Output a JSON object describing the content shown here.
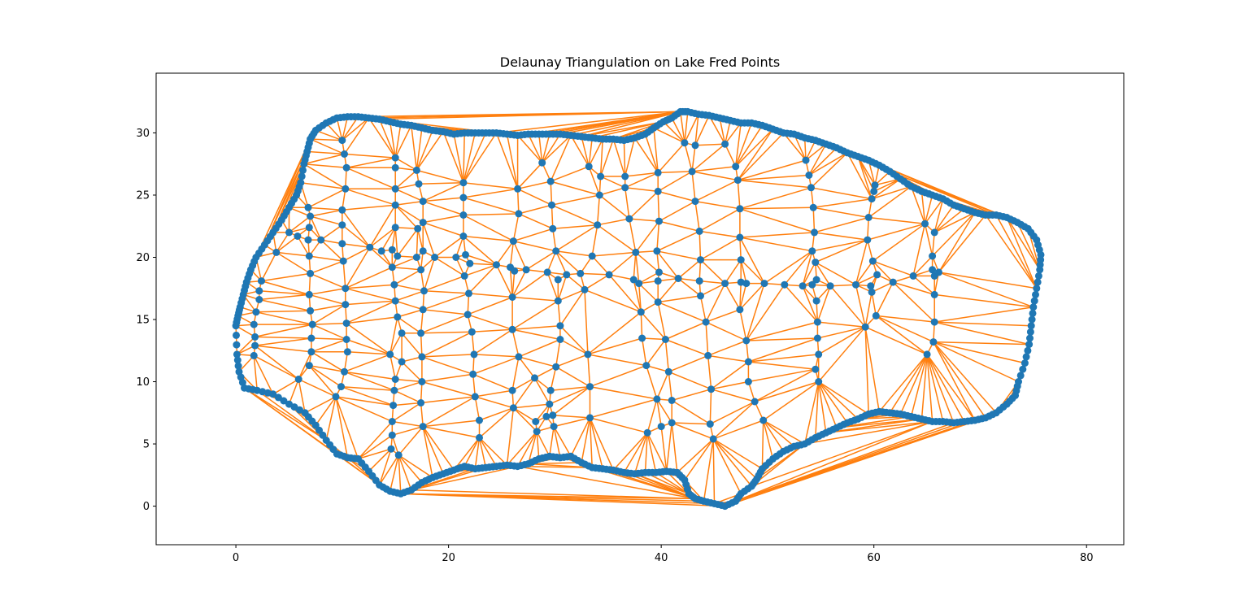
{
  "chart_data": {
    "type": "scatter",
    "title": "Delaunay Triangulation on Lake Fred Points",
    "xlabel": "",
    "ylabel": "",
    "xlim": [
      -7.5,
      83.5
    ],
    "ylim": [
      -3.1,
      34.8
    ],
    "xticks": [
      0,
      20,
      40,
      60,
      80
    ],
    "yticks": [
      0,
      5,
      10,
      15,
      20,
      25,
      30
    ],
    "grid": false,
    "legend": "none",
    "colors": {
      "points": "#1f77b4",
      "edges": "#ff7f0e"
    },
    "boundary": [
      [
        0.0,
        14.5
      ],
      [
        0.1,
        12.2
      ],
      [
        0.3,
        10.8
      ],
      [
        0.8,
        9.5
      ],
      [
        2.0,
        9.3
      ],
      [
        3.5,
        9.0
      ],
      [
        5.0,
        8.2
      ],
      [
        6.5,
        7.5
      ],
      [
        7.5,
        6.5
      ],
      [
        8.5,
        5.3
      ],
      [
        9.5,
        4.2
      ],
      [
        10.5,
        3.9
      ],
      [
        11.5,
        3.8
      ],
      [
        12.5,
        2.8
      ],
      [
        13.5,
        1.7
      ],
      [
        14.5,
        1.2
      ],
      [
        15.5,
        1.0
      ],
      [
        16.5,
        1.3
      ],
      [
        17.5,
        1.9
      ],
      [
        18.5,
        2.3
      ],
      [
        19.5,
        2.6
      ],
      [
        20.5,
        2.9
      ],
      [
        21.5,
        3.2
      ],
      [
        22.5,
        3.0
      ],
      [
        23.5,
        3.1
      ],
      [
        24.5,
        3.2
      ],
      [
        25.5,
        3.3
      ],
      [
        26.5,
        3.2
      ],
      [
        27.5,
        3.4
      ],
      [
        28.5,
        3.8
      ],
      [
        29.5,
        4.0
      ],
      [
        30.5,
        3.9
      ],
      [
        31.5,
        4.0
      ],
      [
        32.5,
        3.5
      ],
      [
        33.5,
        3.1
      ],
      [
        34.5,
        3.0
      ],
      [
        35.5,
        2.9
      ],
      [
        36.5,
        2.7
      ],
      [
        37.5,
        2.6
      ],
      [
        38.5,
        2.7
      ],
      [
        39.5,
        2.7
      ],
      [
        40.5,
        2.8
      ],
      [
        41.5,
        2.7
      ],
      [
        42.2,
        2.1
      ],
      [
        42.6,
        1.0
      ],
      [
        43.2,
        0.6
      ],
      [
        44.0,
        0.4
      ],
      [
        45.0,
        0.2
      ],
      [
        46.0,
        0.0
      ],
      [
        47.0,
        0.4
      ],
      [
        47.5,
        1.0
      ],
      [
        48.5,
        1.6
      ],
      [
        49.0,
        2.2
      ],
      [
        49.5,
        3.0
      ],
      [
        50.5,
        3.8
      ],
      [
        51.5,
        4.4
      ],
      [
        52.5,
        4.8
      ],
      [
        53.5,
        5.0
      ],
      [
        54.5,
        5.5
      ],
      [
        55.5,
        5.9
      ],
      [
        56.5,
        6.3
      ],
      [
        57.5,
        6.7
      ],
      [
        58.5,
        7.0
      ],
      [
        59.5,
        7.4
      ],
      [
        60.5,
        7.6
      ],
      [
        61.5,
        7.5
      ],
      [
        62.5,
        7.4
      ],
      [
        63.5,
        7.2
      ],
      [
        64.5,
        7.0
      ],
      [
        65.5,
        6.8
      ],
      [
        66.5,
        6.8
      ],
      [
        67.5,
        6.7
      ],
      [
        68.5,
        6.8
      ],
      [
        69.5,
        6.9
      ],
      [
        70.5,
        7.1
      ],
      [
        71.5,
        7.5
      ],
      [
        72.5,
        8.2
      ],
      [
        73.3,
        8.9
      ],
      [
        73.6,
        10.0
      ],
      [
        74.2,
        11.5
      ],
      [
        74.6,
        13.0
      ],
      [
        74.8,
        14.5
      ],
      [
        75.0,
        16.0
      ],
      [
        75.3,
        17.5
      ],
      [
        75.6,
        19.0
      ],
      [
        75.7,
        20.2
      ],
      [
        75.3,
        21.4
      ],
      [
        74.5,
        22.3
      ],
      [
        73.5,
        22.8
      ],
      [
        72.5,
        23.2
      ],
      [
        71.5,
        23.4
      ],
      [
        70.5,
        23.4
      ],
      [
        69.5,
        23.6
      ],
      [
        68.5,
        23.9
      ],
      [
        67.5,
        24.2
      ],
      [
        66.5,
        24.7
      ],
      [
        65.5,
        25.0
      ],
      [
        64.5,
        25.3
      ],
      [
        63.5,
        25.7
      ],
      [
        62.5,
        26.3
      ],
      [
        61.5,
        26.9
      ],
      [
        60.5,
        27.4
      ],
      [
        59.5,
        27.8
      ],
      [
        58.5,
        28.1
      ],
      [
        57.5,
        28.4
      ],
      [
        56.5,
        28.8
      ],
      [
        55.5,
        29.1
      ],
      [
        54.5,
        29.4
      ],
      [
        53.5,
        29.6
      ],
      [
        52.5,
        29.9
      ],
      [
        51.5,
        30.0
      ],
      [
        50.5,
        30.3
      ],
      [
        49.5,
        30.6
      ],
      [
        48.5,
        30.8
      ],
      [
        47.5,
        30.8
      ],
      [
        46.5,
        31.0
      ],
      [
        45.5,
        31.2
      ],
      [
        44.5,
        31.4
      ],
      [
        43.5,
        31.5
      ],
      [
        42.5,
        31.7
      ],
      [
        41.8,
        31.7
      ],
      [
        41.0,
        31.2
      ],
      [
        40.2,
        30.9
      ],
      [
        39.3,
        30.4
      ],
      [
        38.5,
        29.9
      ],
      [
        37.5,
        29.6
      ],
      [
        36.5,
        29.4
      ],
      [
        35.5,
        29.5
      ],
      [
        34.5,
        29.5
      ],
      [
        33.5,
        29.6
      ],
      [
        32.5,
        29.7
      ],
      [
        31.5,
        29.8
      ],
      [
        30.5,
        29.9
      ],
      [
        29.5,
        29.9
      ],
      [
        28.5,
        29.9
      ],
      [
        27.5,
        29.9
      ],
      [
        26.5,
        29.8
      ],
      [
        25.5,
        29.9
      ],
      [
        24.5,
        30.0
      ],
      [
        23.5,
        30.0
      ],
      [
        22.5,
        30.0
      ],
      [
        21.5,
        30.0
      ],
      [
        20.5,
        29.9
      ],
      [
        19.5,
        30.1
      ],
      [
        18.5,
        30.2
      ],
      [
        17.5,
        30.4
      ],
      [
        16.5,
        30.6
      ],
      [
        15.5,
        30.7
      ],
      [
        14.5,
        30.9
      ],
      [
        13.5,
        31.1
      ],
      [
        12.5,
        31.2
      ],
      [
        11.5,
        31.3
      ],
      [
        10.5,
        31.3
      ],
      [
        9.5,
        31.2
      ],
      [
        8.5,
        30.8
      ],
      [
        7.5,
        30.2
      ],
      [
        7.0,
        29.5
      ],
      [
        6.7,
        28.5
      ],
      [
        6.4,
        27.5
      ],
      [
        6.1,
        26.0
      ],
      [
        5.7,
        25.0
      ],
      [
        5.0,
        24.0
      ],
      [
        4.3,
        23.0
      ],
      [
        3.5,
        22.0
      ],
      [
        2.7,
        21.0
      ],
      [
        1.9,
        20.0
      ],
      [
        1.4,
        19.0
      ],
      [
        1.0,
        18.0
      ],
      [
        0.7,
        17.0
      ],
      [
        0.4,
        16.0
      ],
      [
        0.2,
        15.3
      ]
    ],
    "interior": [
      [
        10.0,
        29.4
      ],
      [
        10.2,
        28.3
      ],
      [
        10.4,
        27.2
      ],
      [
        10.3,
        25.5
      ],
      [
        10.0,
        23.8
      ],
      [
        10.0,
        22.6
      ],
      [
        10.0,
        21.1
      ],
      [
        10.1,
        19.7
      ],
      [
        10.3,
        17.5
      ],
      [
        10.3,
        16.2
      ],
      [
        10.4,
        14.7
      ],
      [
        10.4,
        13.4
      ],
      [
        10.5,
        12.4
      ],
      [
        10.2,
        10.8
      ],
      [
        9.9,
        9.6
      ],
      [
        9.4,
        8.8
      ],
      [
        6.8,
        24.0
      ],
      [
        7.0,
        23.3
      ],
      [
        6.9,
        22.4
      ],
      [
        6.8,
        21.4
      ],
      [
        6.9,
        20.1
      ],
      [
        7.0,
        18.7
      ],
      [
        6.9,
        17.0
      ],
      [
        7.0,
        15.7
      ],
      [
        7.2,
        14.6
      ],
      [
        7.1,
        13.5
      ],
      [
        7.1,
        12.4
      ],
      [
        6.9,
        11.3
      ],
      [
        5.9,
        10.2
      ],
      [
        5.0,
        22.0
      ],
      [
        5.8,
        21.7
      ],
      [
        8.0,
        21.4
      ],
      [
        3.8,
        20.4
      ],
      [
        2.4,
        18.1
      ],
      [
        2.2,
        17.3
      ],
      [
        2.2,
        16.6
      ],
      [
        1.9,
        15.6
      ],
      [
        1.7,
        14.6
      ],
      [
        1.8,
        13.6
      ],
      [
        1.8,
        12.9
      ],
      [
        1.7,
        12.1
      ],
      [
        12.6,
        20.8
      ],
      [
        13.7,
        20.5
      ],
      [
        14.7,
        20.6
      ],
      [
        15.2,
        20.1
      ],
      [
        14.7,
        19.2
      ],
      [
        14.9,
        17.8
      ],
      [
        15.0,
        16.5
      ],
      [
        15.2,
        15.2
      ],
      [
        15.6,
        13.9
      ],
      [
        14.5,
        12.2
      ],
      [
        15.6,
        11.6
      ],
      [
        15.0,
        10.2
      ],
      [
        14.9,
        9.3
      ],
      [
        14.8,
        8.1
      ],
      [
        14.7,
        6.8
      ],
      [
        14.7,
        5.7
      ],
      [
        14.6,
        4.6
      ],
      [
        15.3,
        4.1
      ],
      [
        15.0,
        28.0
      ],
      [
        15.0,
        27.2
      ],
      [
        15.0,
        25.5
      ],
      [
        15.0,
        24.2
      ],
      [
        15.0,
        22.4
      ],
      [
        17.0,
        27.0
      ],
      [
        17.2,
        25.9
      ],
      [
        17.6,
        24.5
      ],
      [
        17.1,
        22.3
      ],
      [
        17.6,
        22.8
      ],
      [
        17.0,
        20.0
      ],
      [
        17.6,
        20.5
      ],
      [
        17.4,
        19.0
      ],
      [
        17.7,
        17.3
      ],
      [
        17.6,
        15.8
      ],
      [
        17.4,
        13.9
      ],
      [
        17.5,
        12.0
      ],
      [
        17.5,
        10.0
      ],
      [
        17.4,
        8.3
      ],
      [
        17.6,
        6.4
      ],
      [
        18.7,
        20.0
      ],
      [
        20.7,
        20.0
      ],
      [
        21.6,
        20.2
      ],
      [
        22.0,
        19.5
      ],
      [
        21.5,
        18.5
      ],
      [
        21.9,
        17.1
      ],
      [
        21.8,
        15.4
      ],
      [
        22.2,
        14.0
      ],
      [
        22.4,
        12.2
      ],
      [
        22.3,
        10.6
      ],
      [
        22.5,
        8.8
      ],
      [
        22.9,
        6.9
      ],
      [
        22.9,
        5.5
      ],
      [
        21.4,
        26.0
      ],
      [
        21.4,
        24.8
      ],
      [
        21.4,
        23.4
      ],
      [
        21.4,
        21.7
      ],
      [
        24.5,
        19.4
      ],
      [
        25.8,
        19.2
      ],
      [
        26.2,
        18.9
      ],
      [
        27.3,
        19.0
      ],
      [
        26.1,
        21.3
      ],
      [
        26.6,
        23.5
      ],
      [
        26.5,
        25.5
      ],
      [
        26.0,
        16.8
      ],
      [
        26.0,
        14.2
      ],
      [
        26.6,
        12.0
      ],
      [
        26.0,
        9.3
      ],
      [
        26.1,
        7.9
      ],
      [
        28.8,
        27.6
      ],
      [
        29.6,
        26.1
      ],
      [
        29.7,
        24.2
      ],
      [
        29.8,
        22.3
      ],
      [
        30.1,
        20.5
      ],
      [
        29.3,
        18.8
      ],
      [
        30.3,
        18.2
      ],
      [
        30.3,
        16.5
      ],
      [
        30.5,
        14.5
      ],
      [
        30.5,
        13.4
      ],
      [
        30.1,
        11.2
      ],
      [
        28.1,
        10.3
      ],
      [
        29.6,
        9.3
      ],
      [
        29.5,
        8.2
      ],
      [
        29.2,
        7.2
      ],
      [
        29.8,
        7.3
      ],
      [
        29.9,
        6.4
      ],
      [
        28.2,
        6.8
      ],
      [
        28.3,
        6.0
      ],
      [
        31.1,
        18.6
      ],
      [
        32.4,
        18.7
      ],
      [
        32.8,
        17.4
      ],
      [
        33.1,
        12.2
      ],
      [
        33.3,
        9.6
      ],
      [
        33.3,
        7.1
      ],
      [
        33.2,
        27.3
      ],
      [
        34.3,
        26.5
      ],
      [
        34.2,
        25.0
      ],
      [
        34.0,
        22.6
      ],
      [
        33.5,
        20.1
      ],
      [
        35.1,
        18.6
      ],
      [
        36.6,
        26.5
      ],
      [
        36.6,
        25.6
      ],
      [
        37.0,
        23.1
      ],
      [
        37.6,
        20.4
      ],
      [
        37.4,
        18.2
      ],
      [
        37.9,
        17.9
      ],
      [
        38.1,
        15.6
      ],
      [
        38.2,
        13.5
      ],
      [
        38.6,
        11.3
      ],
      [
        38.7,
        5.9
      ],
      [
        39.7,
        26.8
      ],
      [
        39.7,
        25.3
      ],
      [
        39.8,
        22.9
      ],
      [
        39.6,
        20.5
      ],
      [
        39.8,
        18.8
      ],
      [
        39.7,
        18.1
      ],
      [
        39.7,
        16.4
      ],
      [
        39.6,
        8.6
      ],
      [
        40.0,
        6.4
      ],
      [
        40.4,
        13.4
      ],
      [
        40.7,
        10.8
      ],
      [
        41.0,
        8.5
      ],
      [
        41.0,
        6.7
      ],
      [
        41.6,
        18.3
      ],
      [
        42.2,
        29.2
      ],
      [
        43.2,
        29.0
      ],
      [
        42.9,
        26.9
      ],
      [
        43.2,
        24.5
      ],
      [
        43.6,
        22.1
      ],
      [
        43.7,
        19.8
      ],
      [
        43.6,
        18.1
      ],
      [
        43.7,
        16.9
      ],
      [
        44.2,
        14.8
      ],
      [
        44.4,
        12.1
      ],
      [
        44.7,
        9.4
      ],
      [
        44.6,
        6.6
      ],
      [
        44.9,
        5.4
      ],
      [
        46.0,
        29.1
      ],
      [
        46.0,
        17.9
      ],
      [
        47.0,
        27.3
      ],
      [
        47.2,
        26.2
      ],
      [
        47.4,
        23.9
      ],
      [
        47.4,
        21.6
      ],
      [
        47.5,
        19.8
      ],
      [
        47.5,
        18.0
      ],
      [
        48.0,
        17.9
      ],
      [
        47.4,
        15.8
      ],
      [
        48.0,
        13.3
      ],
      [
        48.2,
        11.6
      ],
      [
        48.2,
        10.0
      ],
      [
        48.8,
        8.4
      ],
      [
        49.6,
        6.9
      ],
      [
        49.7,
        17.9
      ],
      [
        51.6,
        17.8
      ],
      [
        53.6,
        27.8
      ],
      [
        53.9,
        26.6
      ],
      [
        54.1,
        25.6
      ],
      [
        54.3,
        24.0
      ],
      [
        54.4,
        22.0
      ],
      [
        54.2,
        20.5
      ],
      [
        54.5,
        19.6
      ],
      [
        54.6,
        18.2
      ],
      [
        54.2,
        17.8
      ],
      [
        53.3,
        17.7
      ],
      [
        54.6,
        16.5
      ],
      [
        54.7,
        14.8
      ],
      [
        54.7,
        13.5
      ],
      [
        54.8,
        12.2
      ],
      [
        54.5,
        11.0
      ],
      [
        54.8,
        10.0
      ],
      [
        55.9,
        17.7
      ],
      [
        59.8,
        24.7
      ],
      [
        60.0,
        25.3
      ],
      [
        60.1,
        25.8
      ],
      [
        59.5,
        23.2
      ],
      [
        59.4,
        21.4
      ],
      [
        59.9,
        19.7
      ],
      [
        59.7,
        17.7
      ],
      [
        59.8,
        17.2
      ],
      [
        60.3,
        18.6
      ],
      [
        61.8,
        18.0
      ],
      [
        58.3,
        17.8
      ],
      [
        60.2,
        15.3
      ],
      [
        59.2,
        14.4
      ],
      [
        63.7,
        18.5
      ],
      [
        64.8,
        22.7
      ],
      [
        65.7,
        22.0
      ],
      [
        65.5,
        20.1
      ],
      [
        65.5,
        19.0
      ],
      [
        65.7,
        18.5
      ],
      [
        66.1,
        18.8
      ],
      [
        65.7,
        17.0
      ],
      [
        65.7,
        14.8
      ],
      [
        65.6,
        13.2
      ],
      [
        65.0,
        12.2
      ]
    ]
  }
}
